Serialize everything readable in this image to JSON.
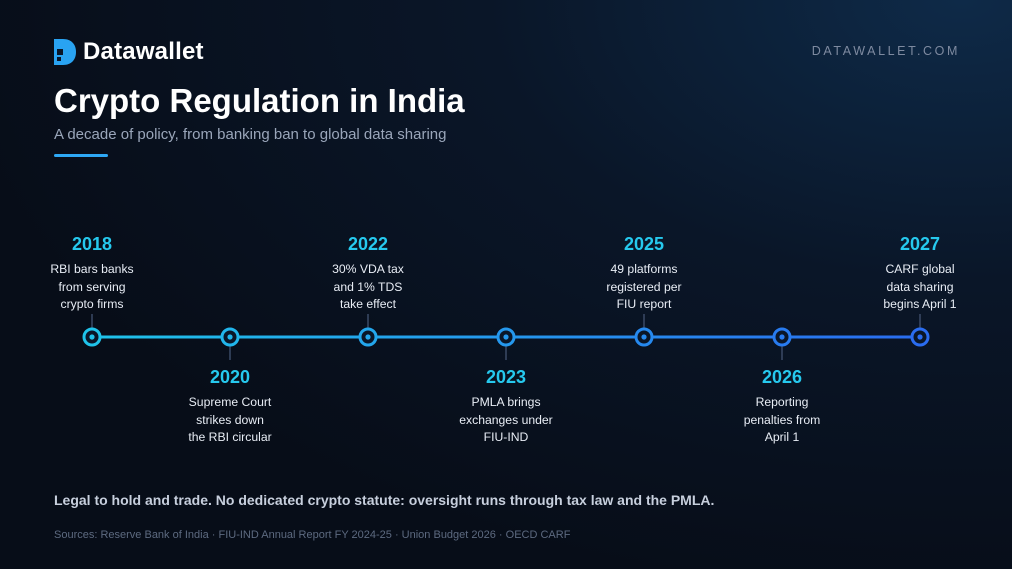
{
  "brand": {
    "name": "Datawallet",
    "url": "DATAWALLET.COM"
  },
  "title": "Crypto Regulation in India",
  "subtitle": "A decade of policy, from banking ban to global data sharing",
  "events": [
    {
      "year": "2018",
      "description": "RBI bars banks\nfrom serving\ncrypto firms",
      "placement": "above"
    },
    {
      "year": "2020",
      "description": "Supreme Court\nstrikes down\nthe RBI circular",
      "placement": "below"
    },
    {
      "year": "2022",
      "description": "30% VDA tax\nand 1% TDS\ntake effect",
      "placement": "above"
    },
    {
      "year": "2023",
      "description": "PMLA brings\nexchanges under\nFIU-IND",
      "placement": "below"
    },
    {
      "year": "2025",
      "description": "49 platforms\nregistered per\nFIU report",
      "placement": "above"
    },
    {
      "year": "2026",
      "description": "Reporting\npenalties from\nApril 1",
      "placement": "below"
    },
    {
      "year": "2027",
      "description": "CARF global\ndata sharing\nbegins April 1",
      "placement": "above"
    }
  ],
  "note": "Legal to hold and trade. No dedicated crypto statute: oversight runs through tax law and the PMLA.",
  "sources": "Sources: Reserve Bank of India · FIU-IND Annual Report FY 2024-25 · Union Budget 2026 · OECD CARF",
  "colors": {
    "accent": "#26c9ee",
    "line_start": "#1fc3ea",
    "line_end": "#2a6cf0",
    "background": "#070d18",
    "logo": "#29a3f2"
  },
  "icons": {
    "logo": "datawallet-logo-icon",
    "marker": "timeline-node-icon"
  }
}
